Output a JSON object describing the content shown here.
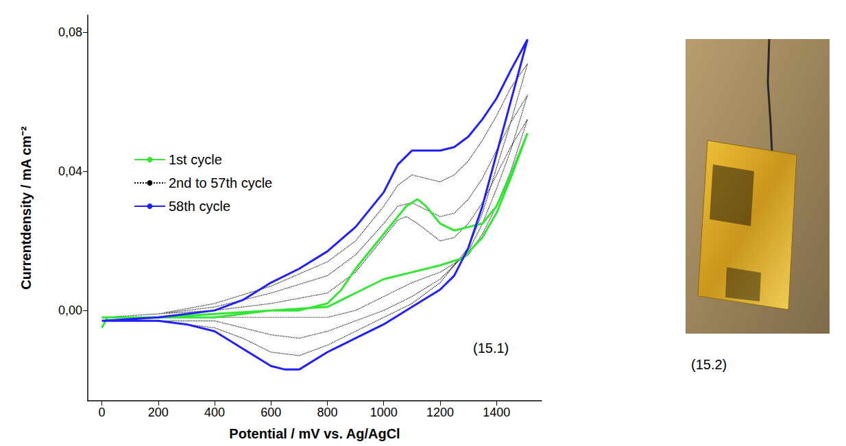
{
  "chart_data": {
    "type": "line",
    "x_label": "Potential / mV vs. Ag/AgCl",
    "y_label": "Currentdensity / mA cm⁻²",
    "xlim": [
      -50,
      1560
    ],
    "xticks": [
      0,
      200,
      400,
      600,
      800,
      1000,
      1200,
      1400
    ],
    "ylim": [
      -0.026,
      0.085
    ],
    "yticks": [
      {
        "value": 0,
        "label": "0,00"
      },
      {
        "value": 0.04,
        "label": "0,04"
      },
      {
        "value": 0.08,
        "label": "0,08"
      }
    ],
    "grid": false,
    "legend": "left",
    "annotations": [
      "(15.1)",
      "(15.2)"
    ],
    "series": [
      {
        "name": "1st cycle",
        "color": "#33e633",
        "line_style": "solid",
        "x": [
          0,
          20,
          200,
          400,
          600,
          800,
          900,
          1000,
          1100,
          1200,
          1280,
          1350,
          1400,
          1450,
          1510,
          1450,
          1400,
          1350,
          1300,
          1250,
          1200,
          1150,
          1120,
          1080,
          1000,
          900,
          850,
          800,
          700,
          600,
          400,
          200,
          0
        ],
        "values": [
          -0.005,
          -0.002,
          -0.002,
          -0.002,
          0,
          0.001,
          0.005,
          0.009,
          0.011,
          0.013,
          0.015,
          0.021,
          0.028,
          0.038,
          0.051,
          0.039,
          0.03,
          0.025,
          0.024,
          0.023,
          0.025,
          0.03,
          0.032,
          0.03,
          0.022,
          0.012,
          0.006,
          0.002,
          0,
          0,
          -0.001,
          -0.002,
          -0.002
        ]
      },
      {
        "name": "2nd to 57th cycle",
        "color": "#000000",
        "line_style": "dotted",
        "x": [
          0,
          200,
          400,
          600,
          800,
          900,
          1000,
          1050,
          1080,
          1120,
          1200,
          1250,
          1300,
          1350,
          1400,
          1450,
          1510,
          1450,
          1400,
          1350,
          1300,
          1200,
          1100,
          1000,
          900,
          800,
          700,
          600,
          400,
          200,
          0,
          null,
          0,
          200,
          400,
          600,
          800,
          900,
          1000,
          1050,
          1100,
          1150,
          1200,
          1250,
          1300,
          1350,
          1400,
          1450,
          1510,
          1450,
          1400,
          1350,
          1300,
          1200,
          1100,
          1000,
          900,
          800,
          700,
          600,
          500,
          400,
          200,
          0,
          null,
          0,
          200,
          400,
          600,
          800,
          900,
          1000,
          1050,
          1100,
          1150,
          1200,
          1250,
          1300,
          1350,
          1400,
          1450,
          1510,
          1450,
          1400,
          1350,
          1300,
          1200,
          1100,
          1000,
          900,
          800,
          700,
          600,
          500,
          400,
          200,
          0
        ],
        "values": [
          -0.002,
          -0.001,
          0,
          0.002,
          0.005,
          0.011,
          0.021,
          0.026,
          0.027,
          0.025,
          0.02,
          0.021,
          0.025,
          0.031,
          0.039,
          0.047,
          0.055,
          0.04,
          0.03,
          0.022,
          0.016,
          0.011,
          0.008,
          0.004,
          0,
          -0.002,
          -0.002,
          -0.002,
          -0.002,
          -0.002,
          -0.002,
          null,
          -0.002,
          -0.001,
          0.001,
          0.005,
          0.01,
          0.016,
          0.025,
          0.03,
          0.031,
          0.029,
          0.027,
          0.028,
          0.032,
          0.038,
          0.046,
          0.054,
          0.062,
          0.046,
          0.035,
          0.025,
          0.017,
          0.009,
          0.004,
          0,
          -0.003,
          -0.006,
          -0.008,
          -0.007,
          -0.005,
          -0.003,
          -0.003,
          -0.003,
          null,
          -0.002,
          -0.001,
          0.002,
          0.007,
          0.014,
          0.02,
          0.03,
          0.036,
          0.039,
          0.038,
          0.037,
          0.039,
          0.043,
          0.049,
          0.056,
          0.064,
          0.071,
          0.054,
          0.041,
          0.028,
          0.018,
          0.008,
          0.002,
          -0.002,
          -0.006,
          -0.01,
          -0.013,
          -0.012,
          -0.008,
          -0.005,
          -0.003,
          -0.003
        ]
      },
      {
        "name": "58th cycle",
        "color": "#1f1fff",
        "line_style": "solid",
        "x": [
          0,
          200,
          400,
          500,
          600,
          700,
          800,
          900,
          1000,
          1050,
          1100,
          1150,
          1200,
          1250,
          1300,
          1350,
          1400,
          1450,
          1510,
          1450,
          1400,
          1350,
          1300,
          1250,
          1200,
          1100,
          1000,
          900,
          800,
          700,
          650,
          600,
          500,
          400,
          300,
          200,
          100,
          0
        ],
        "values": [
          -0.003,
          -0.002,
          0,
          0.003,
          0.008,
          0.012,
          0.017,
          0.024,
          0.034,
          0.042,
          0.046,
          0.046,
          0.046,
          0.047,
          0.05,
          0.055,
          0.061,
          0.069,
          0.078,
          0.06,
          0.045,
          0.03,
          0.018,
          0.01,
          0.006,
          0.001,
          -0.004,
          -0.008,
          -0.012,
          -0.017,
          -0.017,
          -0.016,
          -0.011,
          -0.006,
          -0.004,
          -0.003,
          -0.003,
          -0.003
        ]
      }
    ]
  }
}
